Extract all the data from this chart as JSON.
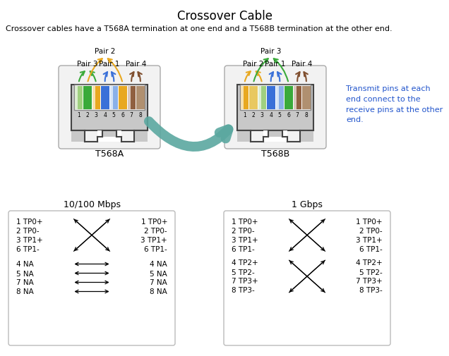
{
  "title": "Crossover Cable",
  "subtitle": "Crossover cables have a T568A termination at one end and a T568B termination at the other end.",
  "t568a_label": "T568A",
  "t568b_label": "T568B",
  "side_note": "Transmit pins at each\nend connect to the\nreceive pins at the other\nend.",
  "mbps_label": "10/100 Mbps",
  "gbps_label": "1 Gbps",
  "colors_a": [
    "#a0d080",
    "#3aaa3a",
    "#e8a820",
    "#3a70d8",
    "#8ab0e8",
    "#e8a820",
    "#906040",
    "#b09070"
  ],
  "colors_b": [
    "#e8a820",
    "#e8c860",
    "#a0d080",
    "#3a70d8",
    "#8ab0e8",
    "#3aaa3a",
    "#906040",
    "#b09070"
  ],
  "bg_color": "#ffffff",
  "teal_color": "#5ba8a0",
  "side_note_color": "#2255cc",
  "cross_rows_100": [
    [
      "1 TP0+",
      "1 TP0+"
    ],
    [
      "2 TP0-",
      "2 TP0-"
    ],
    [
      "3 TP1+",
      "3 TP1+"
    ],
    [
      "6 TP1-",
      "6 TP1-"
    ]
  ],
  "straight_rows_100": [
    [
      "4 NA",
      "4 NA"
    ],
    [
      "5 NA",
      "5 NA"
    ],
    [
      "7 NA",
      "7 NA"
    ],
    [
      "8 NA",
      "8 NA"
    ]
  ],
  "cross_rows_gbps1": [
    [
      "1 TP0+",
      "1 TP0+"
    ],
    [
      "2 TP0-",
      "2 TP0-"
    ],
    [
      "3 TP1+",
      "3 TP1+"
    ],
    [
      "6 TP1-",
      "6 TP1-"
    ]
  ],
  "cross_rows_gbps2": [
    [
      "4 TP2+",
      "4 TP2+"
    ],
    [
      "5 TP2-",
      "5 TP2-"
    ],
    [
      "7 TP3+",
      "7 TP3+"
    ],
    [
      "8 TP3-",
      "8 TP3-"
    ]
  ]
}
